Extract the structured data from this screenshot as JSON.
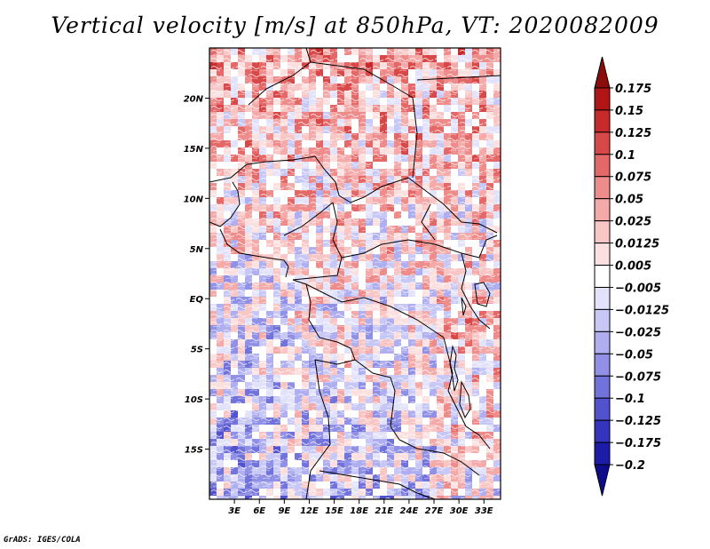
{
  "chart_data": {
    "type": "heatmap",
    "title": "Vertical velocity [m/s] at 850hPa, VT: 2020082009",
    "variable": "Vertical velocity",
    "units": "m/s",
    "level": "850hPa",
    "valid_time": "2020082009",
    "xlabel": "",
    "ylabel": "",
    "x_axis": {
      "range": [
        0,
        35
      ],
      "ticks": [
        3,
        6,
        9,
        12,
        15,
        18,
        21,
        24,
        27,
        30,
        33
      ],
      "tick_labels": [
        "3E",
        "6E",
        "9E",
        "12E",
        "15E",
        "18E",
        "21E",
        "24E",
        "27E",
        "30E",
        "33E"
      ]
    },
    "y_axis": {
      "range": [
        -20,
        25
      ],
      "ticks": [
        20,
        15,
        10,
        5,
        0,
        -5,
        -10,
        -15
      ],
      "tick_labels": [
        "20N",
        "15N",
        "10N",
        "5N",
        "EQ",
        "5S",
        "10S",
        "15S"
      ]
    },
    "colorbar": {
      "levels": [
        "0.175",
        "0.15",
        "0.125",
        "0.1",
        "0.075",
        "0.05",
        "0.025",
        "0.0125",
        "0.005",
        "−0.005",
        "−0.0125",
        "−0.025",
        "−0.05",
        "−0.075",
        "−0.1",
        "−0.125",
        "−0.175",
        "−0.2"
      ],
      "colors": [
        "#8c0c0c",
        "#b11515",
        "#c62a2a",
        "#d84848",
        "#e46868",
        "#ee8b8b",
        "#f5aaaa",
        "#f9c6c6",
        "#fce0e0",
        "#ffffff",
        "#e2e2fb",
        "#c8c8f6",
        "#aeaef0",
        "#9090e6",
        "#7272db",
        "#5252cf",
        "#3434bf",
        "#1c1ca9",
        "#0d0d8c"
      ]
    }
  },
  "footer": {
    "credit": "GrADS: IGES/COLA"
  }
}
